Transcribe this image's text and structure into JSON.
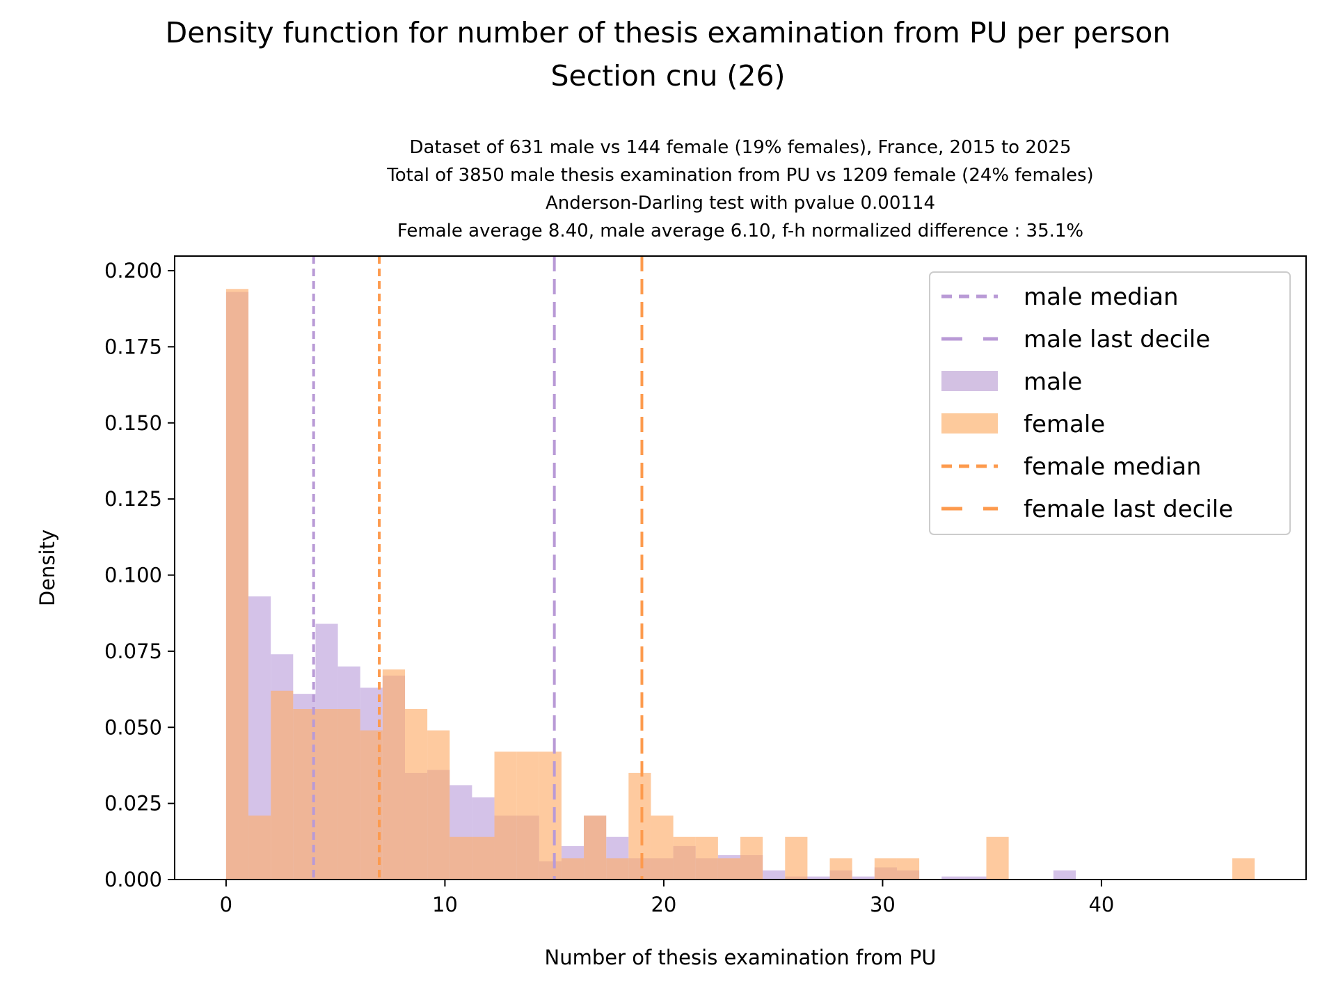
{
  "chart_data": {
    "type": "bar",
    "title": "Density function for number of thesis examination from PU per person",
    "title_line2": "Section cnu (26)",
    "subtitle_lines": [
      "Dataset of 631 male vs 144 female (19% females), France, 2015 to 2025",
      "Total of 3850 male thesis examination from PU vs 1209 female (24% females)",
      "Anderson-Darling test with pvalue 0.00114",
      "Female average 8.40, male average 6.10, f-h normalized difference : 35.1%"
    ],
    "xlabel": "Number of thesis examination from PU",
    "ylabel": "Density",
    "xlim": [
      -2.35,
      49.35
    ],
    "ylim": [
      0,
      0.2048
    ],
    "xticks": [
      0,
      10,
      20,
      30,
      40
    ],
    "xtick_labels": [
      "0",
      "10",
      "20",
      "30",
      "40"
    ],
    "yticks": [
      0,
      0.025,
      0.05,
      0.075,
      0.1,
      0.125,
      0.15,
      0.175,
      0.2
    ],
    "ytick_labels": [
      "0.000",
      "0.025",
      "0.050",
      "0.075",
      "0.100",
      "0.125",
      "0.150",
      "0.175",
      "0.200"
    ],
    "grid": false,
    "legend_position": "top-right",
    "bin_start": 0,
    "bin_end": 47,
    "bin_count": 46,
    "series": [
      {
        "name": "male",
        "color": "#c5aee0",
        "opacity": 0.75,
        "values": [
          0.193,
          0.093,
          0.074,
          0.061,
          0.084,
          0.07,
          0.063,
          0.067,
          0.035,
          0.036,
          0.031,
          0.027,
          0.021,
          0.021,
          0.006,
          0.011,
          0.021,
          0.014,
          0.007,
          0.007,
          0.011,
          0.007,
          0.008,
          0.008,
          0.003,
          0.001,
          0.001,
          0.003,
          0.001,
          0.004,
          0.003,
          0,
          0.001,
          0.001,
          0,
          0,
          0,
          0.003,
          0,
          0,
          0,
          0,
          0,
          0,
          0,
          0
        ]
      },
      {
        "name": "female",
        "color": "#fdae6b",
        "opacity": 0.65,
        "values": [
          0.194,
          0.021,
          0.062,
          0.056,
          0.056,
          0.056,
          0.049,
          0.069,
          0.056,
          0.049,
          0.014,
          0.014,
          0.042,
          0.042,
          0.042,
          0.007,
          0.021,
          0.007,
          0.035,
          0.021,
          0.014,
          0.014,
          0.007,
          0.014,
          0,
          0.014,
          0,
          0.007,
          0,
          0.007,
          0.007,
          0,
          0,
          0,
          0.014,
          0,
          0,
          0,
          0,
          0,
          0,
          0,
          0,
          0,
          0,
          0.007
        ]
      }
    ],
    "vlines": [
      {
        "name": "male median",
        "x": 4,
        "color": "#b99ad6",
        "style": "dense-dash"
      },
      {
        "name": "male last decile",
        "x": 15,
        "color": "#b99ad6",
        "style": "long-dash"
      },
      {
        "name": "female median",
        "x": 7,
        "color": "#fd9a4d",
        "style": "dense-dash"
      },
      {
        "name": "female last decile",
        "x": 19,
        "color": "#fd9a4d",
        "style": "long-dash"
      }
    ],
    "legend": [
      {
        "label": "male median",
        "kind": "line",
        "color": "#b99ad6",
        "style": "dense-dash"
      },
      {
        "label": "male last decile",
        "kind": "line",
        "color": "#b99ad6",
        "style": "long-dash"
      },
      {
        "label": "male",
        "kind": "patch",
        "color": "#d3c1e3"
      },
      {
        "label": "female",
        "kind": "patch",
        "color": "#fdca9c"
      },
      {
        "label": "female median",
        "kind": "line",
        "color": "#fd9a4d",
        "style": "dense-dash"
      },
      {
        "label": "female last decile",
        "kind": "line",
        "color": "#fd9a4d",
        "style": "long-dash"
      }
    ]
  }
}
